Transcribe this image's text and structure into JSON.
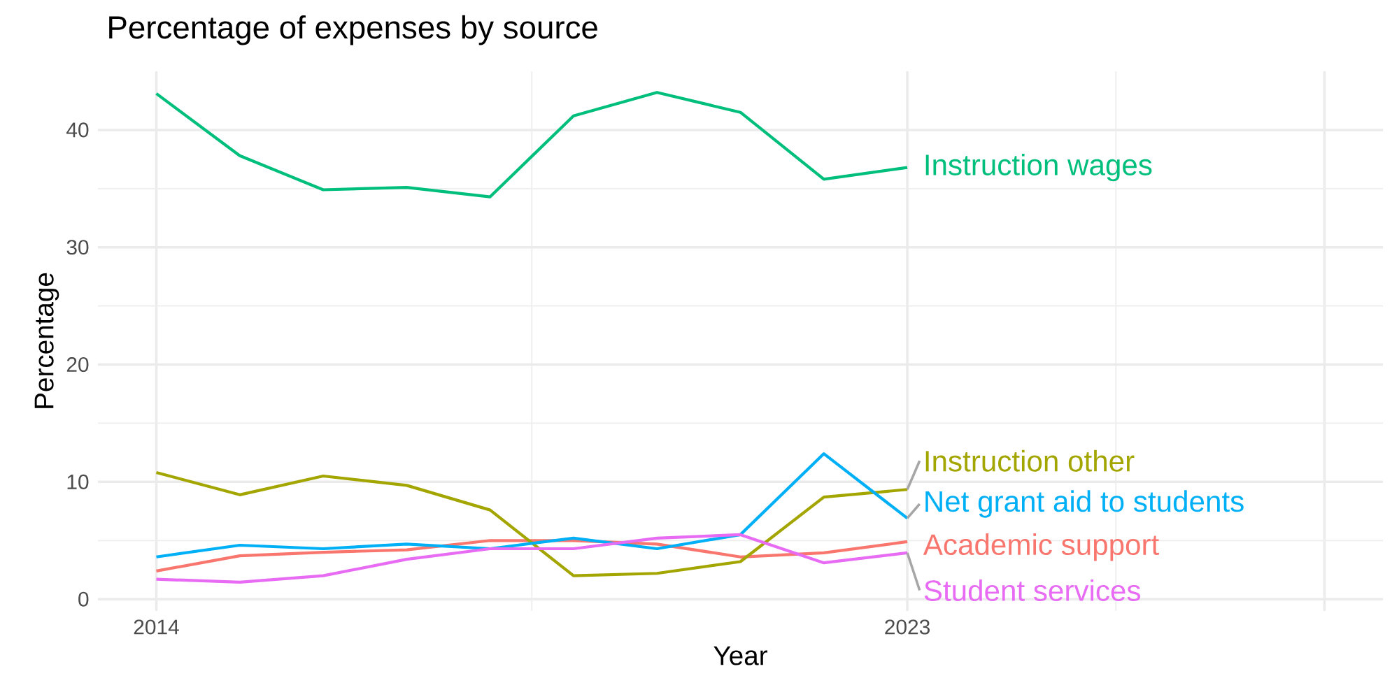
{
  "chart_data": {
    "type": "line",
    "title": "Percentage of expenses by source",
    "xlabel": "Year",
    "ylabel": "Percentage",
    "x": [
      2014,
      2015,
      2016,
      2017,
      2018,
      2019,
      2020,
      2021,
      2022,
      2023
    ],
    "xlim": [
      2013.3,
      2028.7
    ],
    "xticks": [
      2014,
      2023,
      {
        "value": 2028,
        "label": null
      }
    ],
    "ylim": [
      -1,
      45
    ],
    "yticks": [
      0,
      10,
      20,
      30,
      40
    ],
    "grid": true,
    "series": [
      {
        "name": "Academic support",
        "color": "#f8766d",
        "values": [
          2.4,
          3.7,
          4.0,
          4.2,
          5.0,
          5.0,
          4.7,
          3.6,
          3.95,
          4.9
        ]
      },
      {
        "name": "Instruction other",
        "color": "#a3a500",
        "values": [
          10.8,
          8.9,
          10.5,
          9.7,
          7.6,
          2.0,
          2.2,
          3.2,
          8.7,
          9.35
        ]
      },
      {
        "name": "Instruction wages",
        "color": "#00bf7d",
        "values": [
          43.1,
          37.8,
          34.9,
          35.1,
          34.3,
          41.2,
          43.2,
          41.5,
          35.8,
          36.8
        ]
      },
      {
        "name": "Net grant aid to students",
        "color": "#00b0f6",
        "values": [
          3.6,
          4.6,
          4.3,
          4.7,
          4.3,
          5.2,
          4.3,
          5.5,
          12.4,
          6.9
        ]
      },
      {
        "name": "Student services",
        "color": "#e76bf3",
        "values": [
          1.7,
          1.45,
          2.0,
          3.4,
          4.3,
          4.3,
          5.2,
          5.5,
          3.1,
          3.95
        ]
      }
    ]
  }
}
